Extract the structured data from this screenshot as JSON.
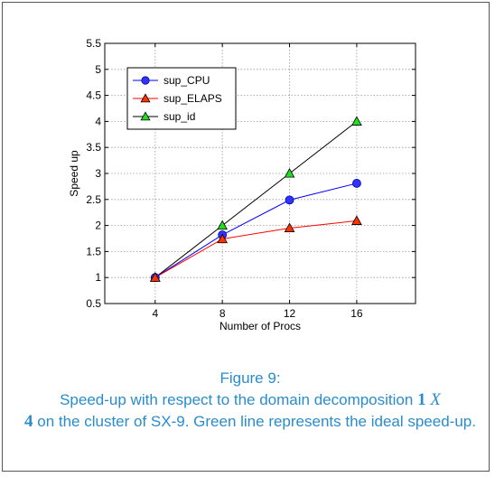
{
  "chart_data": {
    "type": "line",
    "title": "",
    "xlabel": "Number of Procs",
    "ylabel": "Speed up",
    "x": [
      4,
      8,
      12,
      16
    ],
    "xlim": [
      1,
      19.5
    ],
    "ylim": [
      0.5,
      5.5
    ],
    "xticks": [
      "4",
      "8",
      "12",
      "16"
    ],
    "yticks": [
      "0.5",
      "1",
      "1.5",
      "2",
      "2.5",
      "3",
      "3.5",
      "4",
      "4.5",
      "5",
      "5.5"
    ],
    "grid": true,
    "legend_position": "top-left",
    "series": [
      {
        "name": "sup_CPU",
        "values": [
          1.0,
          1.82,
          2.49,
          2.81
        ],
        "color": "#0000ff",
        "marker": "circle",
        "marker_color": "#3333ff"
      },
      {
        "name": "sup_ELAPS",
        "values": [
          1.0,
          1.74,
          1.95,
          2.09
        ],
        "color": "#ff0000",
        "marker": "triangle",
        "marker_color": "#ff3300"
      },
      {
        "name": "sup_id",
        "values": [
          1.0,
          2.0,
          3.0,
          4.0
        ],
        "color": "#000000",
        "marker": "triangle",
        "marker_color": "#22dd22"
      }
    ]
  },
  "caption": {
    "figure_label": "Figure 9:",
    "text_before": "Speed-up with respect to the domain decomposition ",
    "one": "1",
    "x": "X",
    "four": "4",
    "text_after": " on the cluster of SX-9. Green line represents the ideal speed-up."
  }
}
